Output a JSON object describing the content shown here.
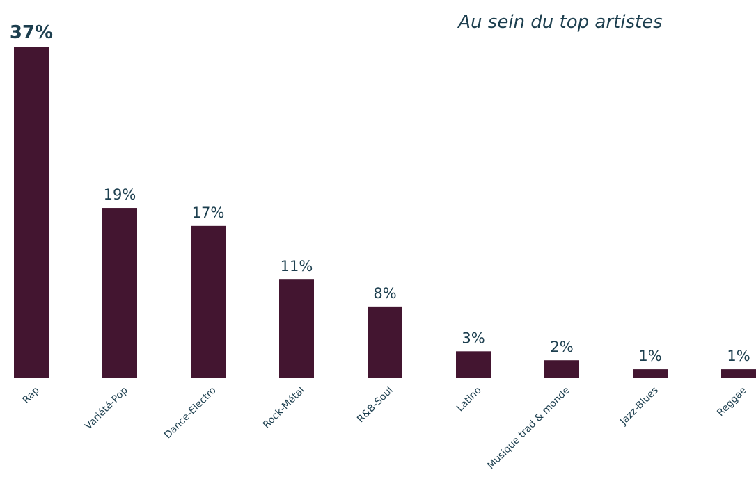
{
  "chart_data": {
    "type": "bar",
    "title": "Au sein du top artistes",
    "categories": [
      "Rap",
      "Variété-Pop",
      "Dance-Electro",
      "Rock-Métal",
      "R&B-Soul",
      "Latino",
      "Musique trad & monde",
      "Jazz-Blues",
      "Reggae"
    ],
    "values": [
      37,
      19,
      17,
      11,
      8,
      3,
      2,
      1,
      1
    ],
    "value_labels": [
      "37%",
      "19%",
      "17%",
      "11%",
      "8%",
      "3%",
      "2%",
      "1%",
      "1%"
    ],
    "color": "#431530"
  }
}
